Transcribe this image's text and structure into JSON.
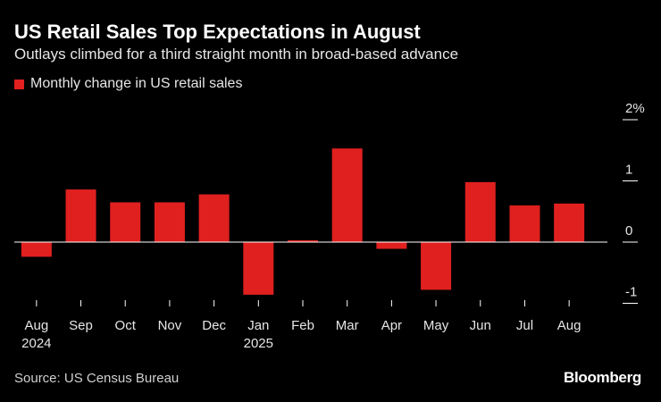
{
  "header": {
    "title": "US Retail Sales Top Expectations in August",
    "subtitle": "Outlays climbed for a third straight month in broad-based advance"
  },
  "chart_data": {
    "type": "bar",
    "title": "US Retail Sales Top Expectations in August",
    "subtitle": "Outlays climbed for a third straight month in broad-based advance",
    "xlabel": "",
    "ylabel": "",
    "series": [
      {
        "name": "Monthly change in US retail sales",
        "color": "#e0201f",
        "values": [
          -0.24,
          0.86,
          0.65,
          0.65,
          0.78,
          -0.86,
          0.03,
          1.53,
          -0.11,
          -0.78,
          0.98,
          0.6,
          0.63
        ]
      }
    ],
    "categories": [
      "Aug",
      "Sep",
      "Oct",
      "Nov",
      "Dec",
      "Jan",
      "Feb",
      "Mar",
      "Apr",
      "May",
      "Jun",
      "Jul",
      "Aug"
    ],
    "year_labels": [
      "2024",
      "",
      "",
      "",
      "",
      "2025",
      "",
      "",
      "",
      "",
      "",
      "",
      ""
    ],
    "y_ticks": [
      -1,
      0,
      1,
      2
    ],
    "y_tick_labels": [
      "-1",
      "0",
      "1",
      "2%"
    ],
    "ylim": [
      -1,
      2
    ],
    "legend_position": "top-left",
    "grid": false
  },
  "footer": {
    "source": "Source: US Census Bureau",
    "brand": "Bloomberg"
  }
}
